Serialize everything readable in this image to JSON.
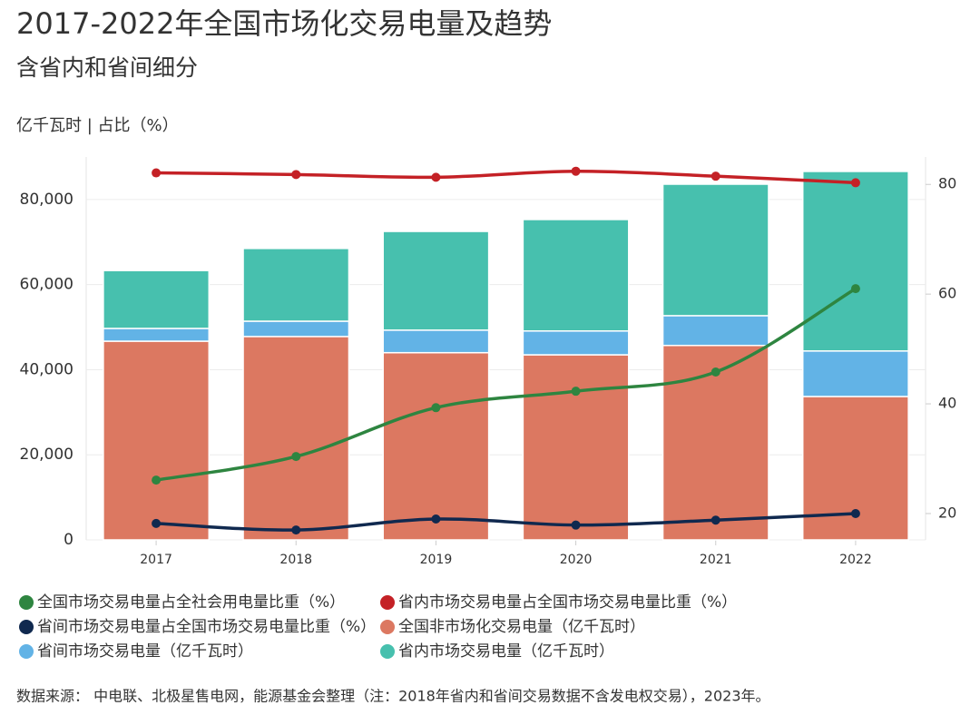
{
  "chart_data": {
    "type": "bar",
    "title": "2017-2022年全国市场化交易电量及趋势",
    "subtitle": "含省内和省间细分",
    "axis_label": "亿千瓦时 | 占比（%）",
    "source": "数据来源： 中电联、北极星售电网，能源基金会整理（注：2018年省内和省间交易数据不含发电权交易），2023年。",
    "categories": [
      "2017",
      "2018",
      "2019",
      "2020",
      "2021",
      "2022"
    ],
    "ylim": [
      0,
      90000
    ],
    "yticks": [
      0,
      {
        "value": 20000,
        "label": "20,000"
      },
      {
        "value": 40000,
        "label": "40,000"
      },
      {
        "value": 60000,
        "label": "60,000"
      },
      {
        "value": 80000,
        "label": "80,000"
      }
    ],
    "y2lim": [
      15.2,
      85
    ],
    "y2ticks": [
      20,
      40,
      60,
      80
    ],
    "grid": true,
    "series": [
      {
        "name": "全国市场交易电量占全社会用电量比重（%）",
        "type": "line",
        "axis": "y2",
        "color": "#2e8540",
        "values": [
          26.1,
          30.4,
          39.3,
          42.3,
          45.8,
          61.0
        ]
      },
      {
        "name": "省内市场交易电量占全国市场交易电量比重（%）",
        "type": "line",
        "axis": "y2",
        "color": "#c42126",
        "values": [
          82.1,
          81.8,
          81.3,
          82.4,
          81.5,
          80.3
        ]
      },
      {
        "name": "省间市场交易电量占全国市场交易电量比重（%）",
        "type": "line",
        "axis": "y2",
        "color": "#10294f",
        "values": [
          18.2,
          17.0,
          19.0,
          17.9,
          18.8,
          20.0
        ]
      },
      {
        "name": "全国非市场化交易电量（亿千瓦时）",
        "type": "bar",
        "color": "#dc7861",
        "values": [
          46700,
          47800,
          44000,
          43500,
          45700,
          33700
        ]
      },
      {
        "name": "省间市场交易电量（亿千瓦时）",
        "type": "bar",
        "color": "#62b3e6",
        "values": [
          3000,
          3600,
          5300,
          5600,
          7000,
          10700
        ]
      },
      {
        "name": "省内市场交易电量（亿千瓦时）",
        "type": "bar",
        "color": "#47c0ae",
        "values": [
          13600,
          17100,
          23200,
          26200,
          30900,
          42200
        ]
      }
    ]
  }
}
